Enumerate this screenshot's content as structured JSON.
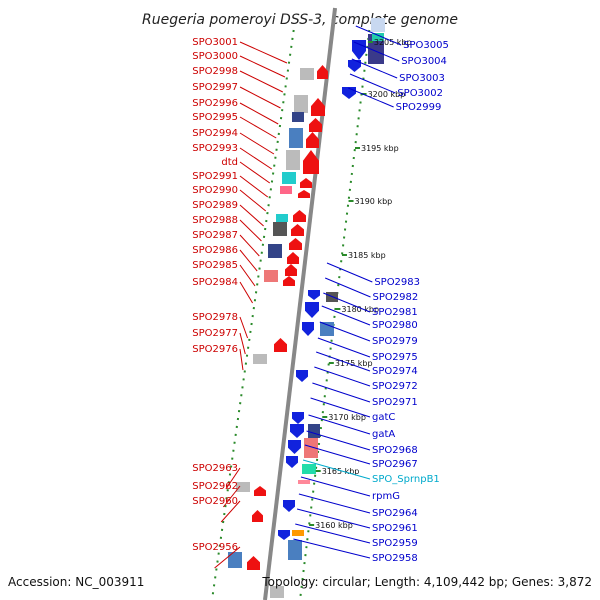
{
  "title": "Ruegeria pomeroyi DSS-3, complete genome",
  "accession": "Accession: NC_003911",
  "topology": "Topology: circular; Length: 4,109,442 bp; Genes: 3,872",
  "colors": {
    "forward_label": "#cc0000",
    "reverse_label": "#0000cc",
    "rna_label": "#00aacc",
    "forward_gene": "#ee1111",
    "reverse_gene": "#1122dd",
    "backbone": "#888888",
    "tick": "#2a8a2a"
  },
  "scale_ticks": [
    "3205 kbp",
    "3200 kbp",
    "3195 kbp",
    "3190 kbp",
    "3185 kbp",
    "3180 kbp",
    "3175 kbp",
    "3170 kbp",
    "3165 kbp",
    "3160 kbp"
  ],
  "left_labels": [
    "SPO3001",
    "SPO3000",
    "SPO2998",
    "SPO2997",
    "SPO2996",
    "SPO2995",
    "SPO2994",
    "SPO2993",
    "dtd",
    "SPO2991",
    "SPO2990",
    "SPO2989",
    "SPO2988",
    "SPO2987",
    "SPO2986",
    "SPO2985",
    "SPO2984",
    "SPO2978",
    "SPO2977",
    "SPO2976",
    "SPO2963",
    "SPO2962",
    "SPO2960",
    "SPO2956"
  ],
  "right_labels": [
    "SPO3005",
    "SPO3004",
    "SPO3003",
    "SPO3002",
    "SPO2999",
    "SPO2983",
    "SPO2982",
    "SPO2981",
    "SPO2980",
    "SPO2979",
    "SPO2975",
    "SPO2974",
    "SPO2972",
    "SPO2971",
    "gatC",
    "gatA",
    "SPO2968",
    "SPO2967",
    "SPO_SprnpB1",
    "rpmG",
    "SPO2964",
    "SPO2961",
    "SPO2959",
    "SPO2958"
  ],
  "rna_genes": [
    "SPO_SprnpB1"
  ]
}
